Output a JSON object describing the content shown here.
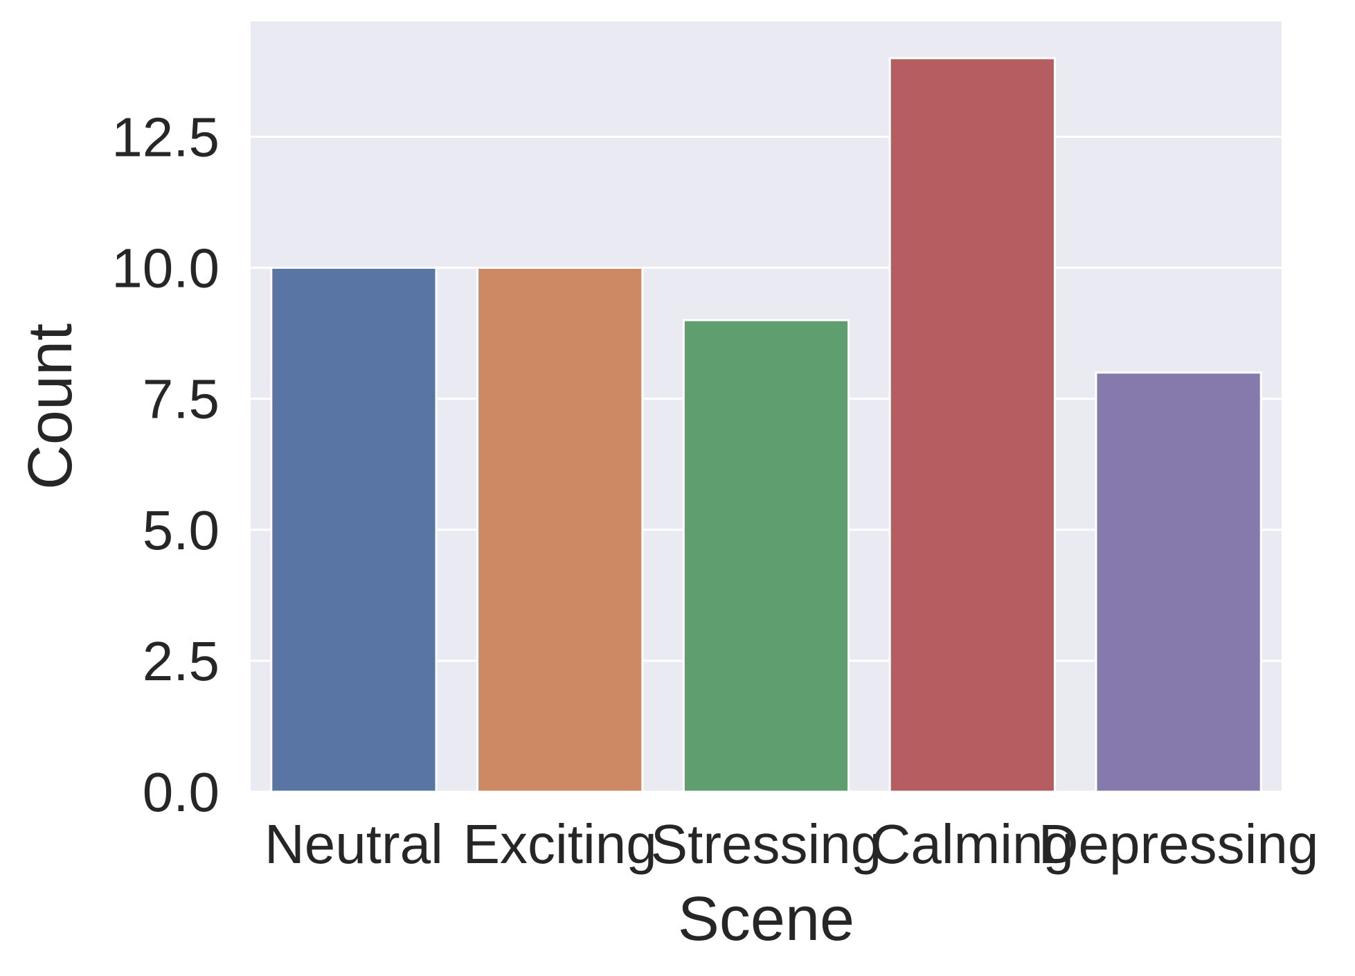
{
  "chart_data": {
    "type": "bar",
    "title": "",
    "xlabel": "Scene",
    "ylabel": "Count",
    "categories": [
      "Neutral",
      "Exciting",
      "Stressing",
      "Calming",
      "Depressing"
    ],
    "values": [
      10,
      10,
      9,
      14,
      8
    ],
    "colors": [
      "#5975a4",
      "#cc8963",
      "#5f9e6e",
      "#b55d60",
      "#857aab"
    ],
    "ylim": [
      0,
      14.7
    ],
    "yticks": [
      0.0,
      2.5,
      5.0,
      7.5,
      10.0,
      12.5
    ],
    "ytick_labels": [
      "0.0",
      "2.5",
      "5.0",
      "7.5",
      "10.0",
      "12.5"
    ],
    "grid": true,
    "background_color": "#eaeaf2",
    "grid_color": "#ffffff",
    "legend": "none"
  }
}
